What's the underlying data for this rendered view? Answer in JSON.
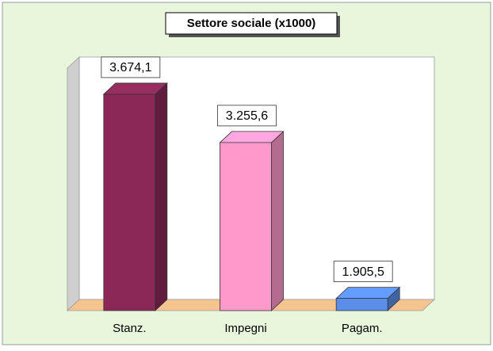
{
  "chart_data": {
    "type": "bar3d",
    "title": "Settore sociale (x1000)",
    "categories": [
      "Stanz.",
      "Impegni",
      "Pagam."
    ],
    "values": [
      3674.1,
      3255.6,
      1905.5
    ],
    "value_labels": [
      "3.674,1",
      "3.255,6",
      "1.905,5"
    ],
    "colors": [
      "#8b2857",
      "#ff99cc",
      "#5b8ee8"
    ],
    "ylim": [
      1800,
      3900
    ]
  }
}
